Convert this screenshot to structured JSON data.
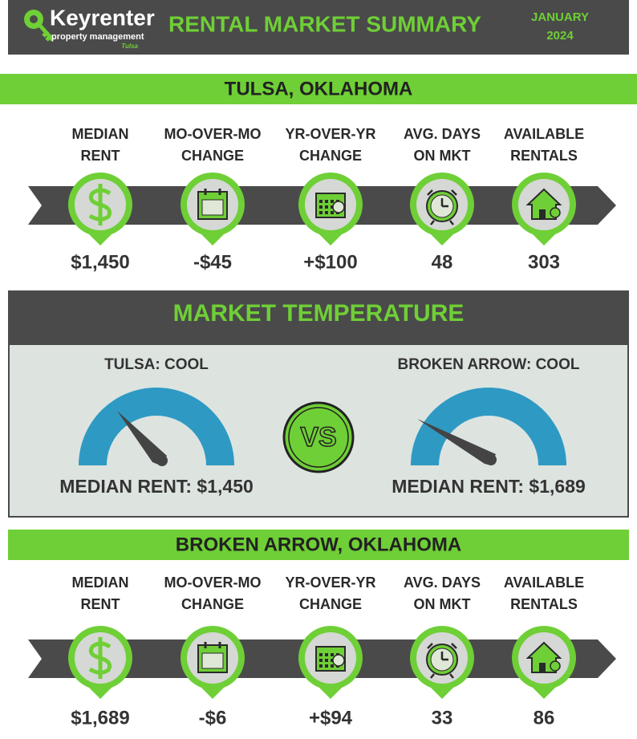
{
  "header": {
    "logo": {
      "brand": "Keyrenter",
      "tagline": "property management",
      "city": "Tulsa"
    },
    "title": "RENTAL MARKET SUMMARY",
    "date": [
      "JANUARY",
      "2024"
    ]
  },
  "sections": [
    {
      "title": "TULSA, OKLAHOMA",
      "metrics": [
        {
          "label": [
            "MEDIAN",
            "RENT"
          ],
          "value": "$1,450"
        },
        {
          "label": [
            "MO-OVER-MO",
            "CHANGE"
          ],
          "value": "-$45"
        },
        {
          "label": [
            "YR-OVER-YR",
            "CHANGE"
          ],
          "value": "+$100"
        },
        {
          "label": [
            "AVG. DAYS",
            "ON MKT"
          ],
          "value": "48"
        },
        {
          "label": [
            "AVAILABLE",
            "RENTALS"
          ],
          "value": "303"
        }
      ]
    },
    {
      "title": "BROKEN ARROW, OKLAHOMA",
      "metrics": [
        {
          "label": [
            "MEDIAN",
            "RENT"
          ],
          "value": "$1,689"
        },
        {
          "label": [
            "MO-OVER-MO",
            "CHANGE"
          ],
          "value": "-$6"
        },
        {
          "label": [
            "YR-OVER-YR",
            "CHANGE"
          ],
          "value": "+$94"
        },
        {
          "label": [
            "AVG. DAYS",
            "ON MKT"
          ],
          "value": "33"
        },
        {
          "label": [
            "AVAILABLE",
            "RENTALS"
          ],
          "value": "86"
        }
      ]
    }
  ],
  "temperature": {
    "title": "MARKET TEMPERATURE",
    "vs": "VS",
    "markets": [
      {
        "label": "TULSA: COOL",
        "median": "MEDIAN RENT: $1,450"
      },
      {
        "label": "BROKEN ARROW: COOL",
        "median": "MEDIAN RENT: $1,689"
      }
    ]
  }
}
